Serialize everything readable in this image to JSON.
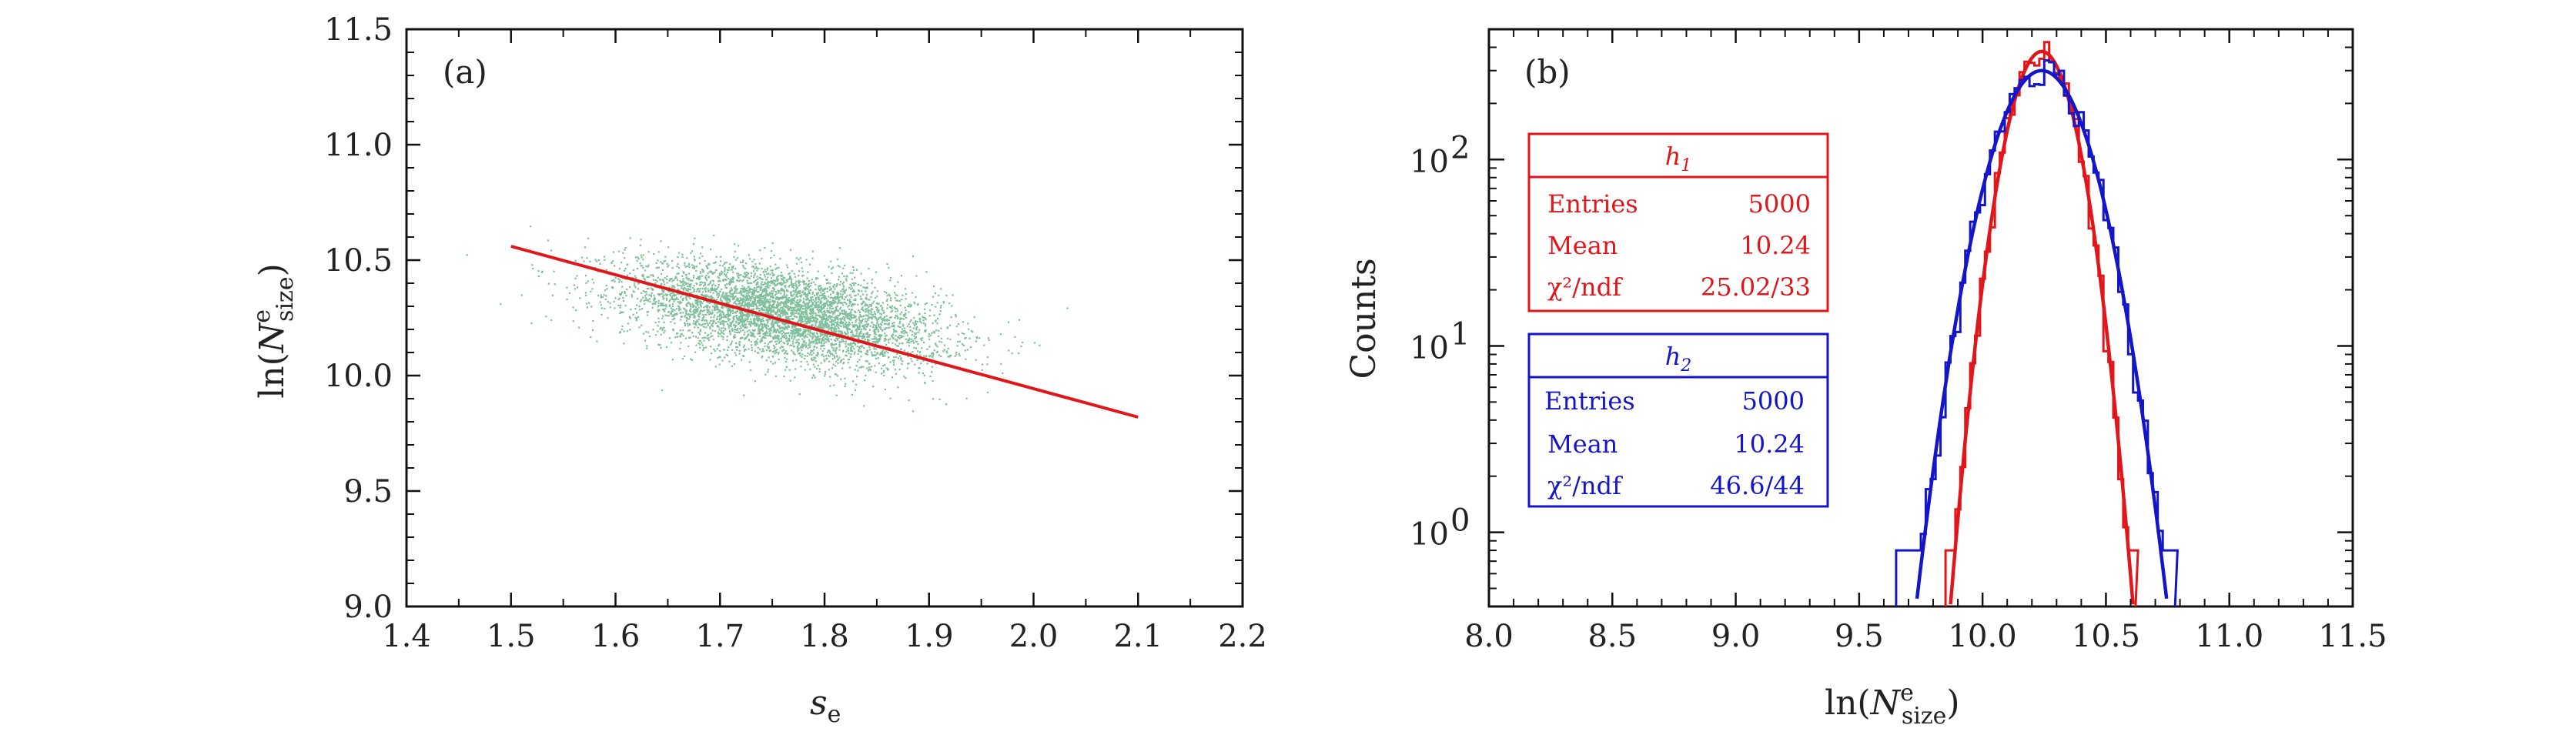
{
  "chart_data": [
    {
      "type": "scatter",
      "panel_label": "(a)",
      "xlabel": "s_e",
      "ylabel": "ln(N^e_size)",
      "xlim": [
        1.4,
        2.2
      ],
      "ylim": [
        9.0,
        11.5
      ],
      "x_ticks": [
        "1.4",
        "1.5",
        "1.6",
        "1.7",
        "1.8",
        "1.9",
        "2.0",
        "2.1",
        "2.2"
      ],
      "y_ticks": [
        "9.0",
        "9.5",
        "10.0",
        "10.5",
        "11.0",
        "11.5"
      ],
      "scatter": {
        "color": "#7fbf9a",
        "n_points": 5000,
        "center": [
          1.76,
          10.27
        ],
        "sd_x": 0.075,
        "sd_y": 0.14,
        "slope": -1.26
      },
      "fit_line": {
        "color": "#e0161a",
        "x": [
          1.5,
          2.1
        ],
        "y": [
          10.56,
          9.82
        ]
      }
    },
    {
      "type": "histogram",
      "panel_label": "(b)",
      "xlabel": "ln(N^e_size)",
      "ylabel": "Counts",
      "xlim": [
        8.0,
        11.5
      ],
      "ylim_log": [
        0.4,
        500
      ],
      "y_scale": "log",
      "x_ticks": [
        "8.0",
        "8.5",
        "9.0",
        "9.5",
        "10.0",
        "10.5",
        "11.0",
        "11.5"
      ],
      "y_ticks": [
        {
          "base": "10",
          "exp": "0",
          "value": 1
        },
        {
          "base": "10",
          "exp": "1",
          "value": 10
        },
        {
          "base": "10",
          "exp": "2",
          "value": 100
        }
      ],
      "series": [
        {
          "name": "h1",
          "color": "#e0161a",
          "mean": 10.24,
          "sigma": 0.1,
          "peak": 380,
          "hist_range": [
            9.85,
            10.62
          ],
          "bin_width": 0.02,
          "stats": {
            "Entries": "5000",
            "Mean": "10.24",
            "chi2": "25.02/33"
          }
        },
        {
          "name": "h2",
          "color": "#1414c8",
          "mean": 10.24,
          "sigma": 0.14,
          "peak": 300,
          "hist_range": [
            9.65,
            10.78
          ],
          "bin_width": 0.02,
          "stats": {
            "Entries": "5000",
            "Mean": "10.24",
            "chi2": "46.6/44"
          }
        }
      ],
      "stats_labels": {
        "entries": "Entries",
        "mean": "Mean",
        "chi2": "χ²/ndf"
      }
    }
  ]
}
